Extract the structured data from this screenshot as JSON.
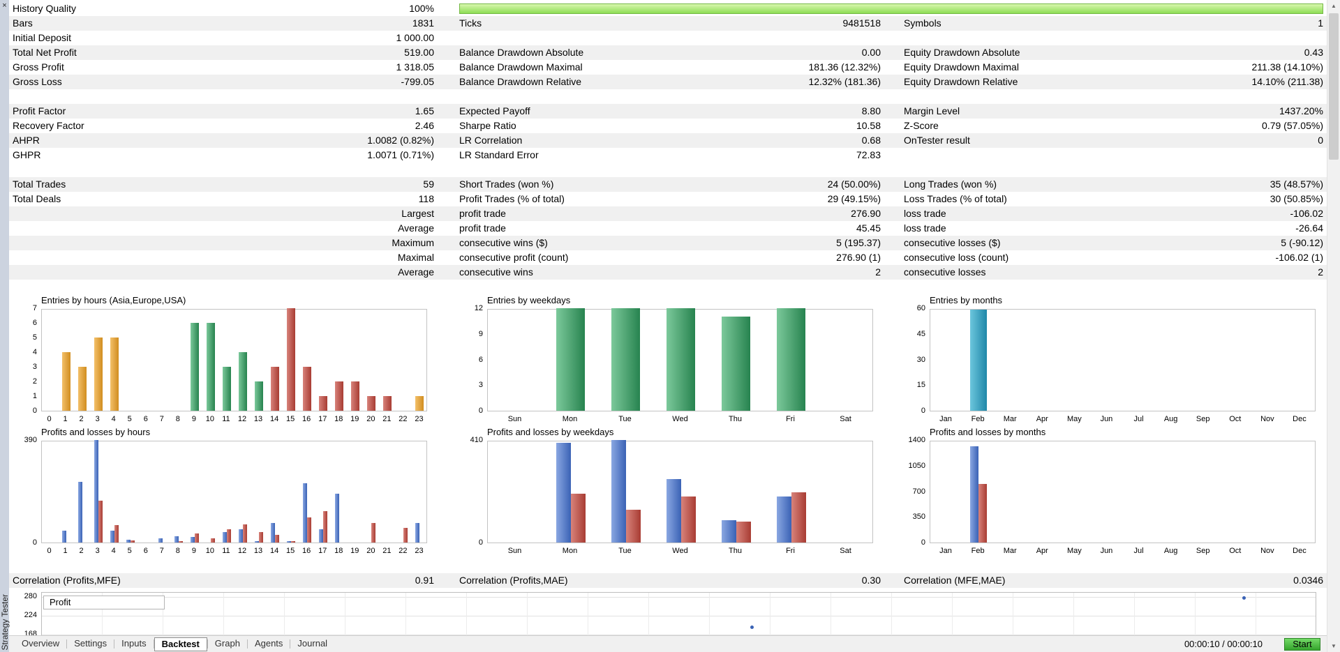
{
  "panel": {
    "title": "Strategy Tester"
  },
  "icons": {
    "close": "×",
    "scroll_up": "▲",
    "scroll_down": "▼"
  },
  "report": {
    "history_quality": {
      "label": "History Quality",
      "value": "100%",
      "percent": 100
    },
    "rows": [
      {
        "c": [
          "Bars",
          "1831",
          "Ticks",
          "9481518",
          "Symbols",
          "1"
        ],
        "shade": true
      },
      {
        "c": [
          "Initial Deposit",
          "1 000.00",
          "",
          "",
          "",
          ""
        ],
        "shade": false
      },
      {
        "c": [
          "Total Net Profit",
          "519.00",
          "Balance Drawdown Absolute",
          "0.00",
          "Equity Drawdown Absolute",
          "0.43"
        ],
        "shade": true
      },
      {
        "c": [
          "Gross Profit",
          "1 318.05",
          "Balance Drawdown Maximal",
          "181.36 (12.32%)",
          "Equity Drawdown Maximal",
          "211.38 (14.10%)"
        ],
        "shade": false
      },
      {
        "c": [
          "Gross Loss",
          "-799.05",
          "Balance Drawdown Relative",
          "12.32% (181.36)",
          "Equity Drawdown Relative",
          "14.10% (211.38)"
        ],
        "shade": true
      },
      {
        "c": [
          "",
          "",
          "",
          "",
          "",
          ""
        ],
        "shade": false
      },
      {
        "c": [
          "Profit Factor",
          "1.65",
          "Expected Payoff",
          "8.80",
          "Margin Level",
          "1437.20%"
        ],
        "shade": true
      },
      {
        "c": [
          "Recovery Factor",
          "2.46",
          "Sharpe Ratio",
          "10.58",
          "Z-Score",
          "0.79 (57.05%)"
        ],
        "shade": false
      },
      {
        "c": [
          "AHPR",
          "1.0082 (0.82%)",
          "LR Correlation",
          "0.68",
          "OnTester result",
          "0"
        ],
        "shade": true
      },
      {
        "c": [
          "GHPR",
          "1.0071 (0.71%)",
          "LR Standard Error",
          "72.83",
          "",
          ""
        ],
        "shade": false
      },
      {
        "c": [
          "",
          "",
          "",
          "",
          "",
          ""
        ],
        "shade": false
      },
      {
        "c": [
          "Total Trades",
          "59",
          "Short Trades (won %)",
          "24 (50.00%)",
          "Long Trades (won %)",
          "35 (48.57%)"
        ],
        "shade": true
      },
      {
        "c": [
          "Total Deals",
          "118",
          "Profit Trades (% of total)",
          "29 (49.15%)",
          "Loss Trades (% of total)",
          "30 (50.85%)"
        ],
        "shade": false
      },
      {
        "c": [
          "",
          "Largest",
          "profit trade",
          "276.90",
          "loss trade",
          "-106.02"
        ],
        "shade": true
      },
      {
        "c": [
          "",
          "Average",
          "profit trade",
          "45.45",
          "loss trade",
          "-26.64"
        ],
        "shade": false
      },
      {
        "c": [
          "",
          "Maximum",
          "consecutive wins ($)",
          "5 (195.37)",
          "consecutive losses ($)",
          "5 (-90.12)"
        ],
        "shade": true
      },
      {
        "c": [
          "",
          "Maximal",
          "consecutive profit (count)",
          "276.90 (1)",
          "consecutive loss (count)",
          "-106.02 (1)"
        ],
        "shade": false
      },
      {
        "c": [
          "",
          "Average",
          "consecutive wins",
          "2",
          "consecutive losses",
          "2"
        ],
        "shade": true
      }
    ]
  },
  "correlations": {
    "items": [
      {
        "label": "Correlation (Profits,MFE)",
        "value": "0.91"
      },
      {
        "label": "Correlation (Profits,MAE)",
        "value": "0.30"
      },
      {
        "label": "Correlation (MFE,MAE)",
        "value": "0.0346"
      }
    ]
  },
  "colors": {
    "stripe": "#f0f0f0",
    "progress_border": "#74b844",
    "progress_fill": [
      "#d8f7ae",
      "#8edd55"
    ],
    "asia": [
      "#f3c06a",
      "#d18d1f"
    ],
    "europe": [
      "#7cc99b",
      "#27834f"
    ],
    "usa": [
      "#d8837b",
      "#a83c33"
    ],
    "blue": [
      "#8aa7e2",
      "#3a62b5"
    ],
    "red": [
      "#d8837b",
      "#a83c33"
    ],
    "teal": [
      "#6cc6dd",
      "#1f87a8"
    ],
    "dot": "#3a62b5",
    "start_button": "#35a42d"
  },
  "chart_data": [
    {
      "id": "entries-by-hours",
      "type": "bar",
      "title": "Entries by hours (Asia,Europe,USA)",
      "categories": [
        "0",
        "1",
        "2",
        "3",
        "4",
        "5",
        "6",
        "7",
        "8",
        "9",
        "10",
        "11",
        "12",
        "13",
        "14",
        "15",
        "16",
        "17",
        "18",
        "19",
        "20",
        "21",
        "22",
        "23"
      ],
      "values": [
        0,
        4,
        3,
        5,
        5,
        0,
        0,
        0,
        0,
        6,
        6,
        3,
        4,
        2,
        3,
        7,
        3,
        1,
        2,
        2,
        1,
        1,
        0,
        1
      ],
      "bar_colors": [
        "",
        "asia",
        "asia",
        "asia",
        "asia",
        "",
        "",
        "",
        "",
        "europe",
        "europe",
        "europe",
        "europe",
        "europe",
        "usa",
        "usa",
        "usa",
        "usa",
        "usa",
        "usa",
        "usa",
        "usa",
        "",
        "asia"
      ],
      "ylim": [
        0,
        7
      ],
      "yticks": [
        0,
        1,
        2,
        3,
        4,
        5,
        6,
        7
      ]
    },
    {
      "id": "entries-by-weekdays",
      "type": "bar",
      "title": "Entries by weekdays",
      "categories": [
        "Sun",
        "Mon",
        "Tue",
        "Wed",
        "Thu",
        "Fri",
        "Sat"
      ],
      "values": [
        0,
        12,
        12,
        12,
        11,
        12,
        0
      ],
      "color": "europe",
      "ylim": [
        0,
        12
      ],
      "yticks": [
        0,
        3,
        6,
        9,
        12
      ]
    },
    {
      "id": "entries-by-months",
      "type": "bar",
      "title": "Entries by months",
      "categories": [
        "Jan",
        "Feb",
        "Mar",
        "Apr",
        "May",
        "Jun",
        "Jul",
        "Aug",
        "Sep",
        "Oct",
        "Nov",
        "Dec"
      ],
      "values": [
        0,
        59,
        0,
        0,
        0,
        0,
        0,
        0,
        0,
        0,
        0,
        0
      ],
      "color": "teal",
      "ylim": [
        0,
        60
      ],
      "yticks": [
        0,
        15,
        30,
        45,
        60
      ]
    },
    {
      "id": "pl-by-hours",
      "type": "bar",
      "title": "Profits and losses by hours",
      "categories": [
        "0",
        "1",
        "2",
        "3",
        "4",
        "5",
        "6",
        "7",
        "8",
        "9",
        "10",
        "11",
        "12",
        "13",
        "14",
        "15",
        "16",
        "17",
        "18",
        "19",
        "20",
        "21",
        "22",
        "23"
      ],
      "series": [
        {
          "name": "profit",
          "color": "blue",
          "values": [
            0,
            45,
            230,
            390,
            45,
            10,
            0,
            15,
            25,
            20,
            0,
            40,
            50,
            5,
            75,
            5,
            225,
            50,
            185,
            0,
            0,
            0,
            0,
            75
          ]
        },
        {
          "name": "loss",
          "color": "red",
          "values": [
            0,
            0,
            0,
            160,
            65,
            8,
            0,
            0,
            5,
            35,
            15,
            50,
            70,
            40,
            30,
            5,
            95,
            120,
            0,
            0,
            75,
            0,
            55,
            0
          ]
        }
      ],
      "ylim": [
        0,
        390
      ],
      "yticks": [
        0,
        390
      ]
    },
    {
      "id": "pl-by-weekdays",
      "type": "bar",
      "title": "Profits and losses by weekdays",
      "categories": [
        "Sun",
        "Mon",
        "Tue",
        "Wed",
        "Thu",
        "Fri",
        "Sat"
      ],
      "series": [
        {
          "name": "profit",
          "color": "blue",
          "values": [
            0,
            400,
            410,
            255,
            90,
            185,
            0
          ]
        },
        {
          "name": "loss",
          "color": "red",
          "values": [
            0,
            195,
            130,
            185,
            85,
            200,
            0
          ]
        }
      ],
      "ylim": [
        0,
        410
      ],
      "yticks": [
        0,
        410
      ]
    },
    {
      "id": "pl-by-months",
      "type": "bar",
      "title": "Profits and losses by months",
      "categories": [
        "Jan",
        "Feb",
        "Mar",
        "Apr",
        "May",
        "Jun",
        "Jul",
        "Aug",
        "Sep",
        "Oct",
        "Nov",
        "Dec"
      ],
      "series": [
        {
          "name": "profit",
          "color": "blue",
          "values": [
            0,
            1318,
            0,
            0,
            0,
            0,
            0,
            0,
            0,
            0,
            0,
            0
          ]
        },
        {
          "name": "loss",
          "color": "red",
          "values": [
            0,
            799,
            0,
            0,
            0,
            0,
            0,
            0,
            0,
            0,
            0,
            0
          ]
        }
      ],
      "ylim": [
        0,
        1400
      ],
      "yticks": [
        0,
        350,
        700,
        1050,
        1400
      ]
    },
    {
      "id": "profit-curve",
      "type": "scatter",
      "legend_label": "Profit",
      "yticks": [
        280,
        224,
        168
      ],
      "points": [
        {
          "xf": 0.557,
          "value": 190
        },
        {
          "xf": 0.943,
          "value": 278
        }
      ]
    }
  ],
  "tabs": {
    "items": [
      "Overview",
      "Settings",
      "Inputs",
      "Backtest",
      "Graph",
      "Agents",
      "Journal"
    ],
    "active": "Backtest"
  },
  "status": {
    "elapsed": "00:00:10 / 00:00:10",
    "start_label": "Start"
  }
}
